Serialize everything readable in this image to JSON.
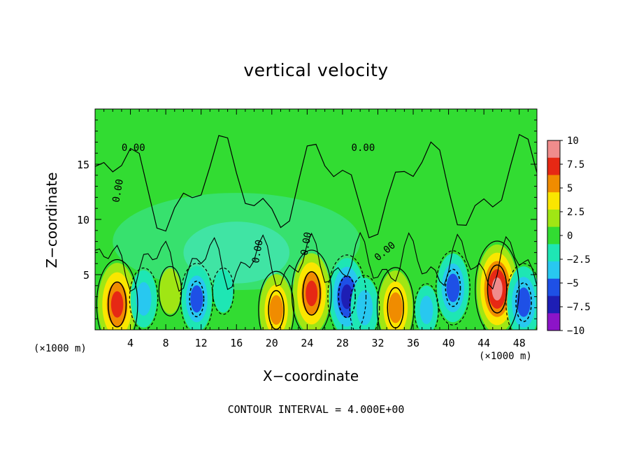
{
  "chart_data": {
    "type": "heatmap",
    "title": "vertical velocity",
    "xlabel": "X−coordinate",
    "ylabel": "Z−coordinate",
    "x_unit": "(×1000 m)",
    "xlim": [
      0,
      50
    ],
    "ylim": [
      0,
      20
    ],
    "x_ticks": [
      4,
      8,
      12,
      16,
      20,
      24,
      28,
      32,
      36,
      40,
      44,
      48
    ],
    "y_ticks": [
      5,
      10,
      15
    ],
    "zlim": [
      -10,
      10
    ],
    "colorbar_ticks": [
      "10",
      "7.5",
      "5",
      "2.5",
      "0",
      "−2.5",
      "−5",
      "−7.5",
      "−10"
    ],
    "contour_labels": [
      "0.00",
      "0.00",
      "0.00",
      "0.00",
      "0.00",
      "0.00"
    ],
    "footnote": "CONTOUR INTERVAL = 4.000E+00",
    "features": [
      {
        "x": 2.5,
        "z": 2.3,
        "w": 9.0
      },
      {
        "x": 5.5,
        "z": 2.8,
        "w": -4.5
      },
      {
        "x": 8.5,
        "z": 3.5,
        "w": 2.5
      },
      {
        "x": 11.5,
        "z": 2.8,
        "w": -6.0
      },
      {
        "x": 14.5,
        "z": 3.5,
        "w": -2.0
      },
      {
        "x": 20.5,
        "z": 1.8,
        "w": 7.0
      },
      {
        "x": 24.5,
        "z": 3.3,
        "w": 8.5
      },
      {
        "x": 28.5,
        "z": 3.0,
        "w": -8.0
      },
      {
        "x": 30.5,
        "z": 2.0,
        "w": -5.0
      },
      {
        "x": 34.0,
        "z": 2.0,
        "w": 7.5
      },
      {
        "x": 37.5,
        "z": 1.8,
        "w": -3.0
      },
      {
        "x": 40.5,
        "z": 3.8,
        "w": -6.5
      },
      {
        "x": 45.5,
        "z": 3.7,
        "w": 10.0
      },
      {
        "x": 48.5,
        "z": 2.5,
        "w": -7.0
      }
    ]
  }
}
